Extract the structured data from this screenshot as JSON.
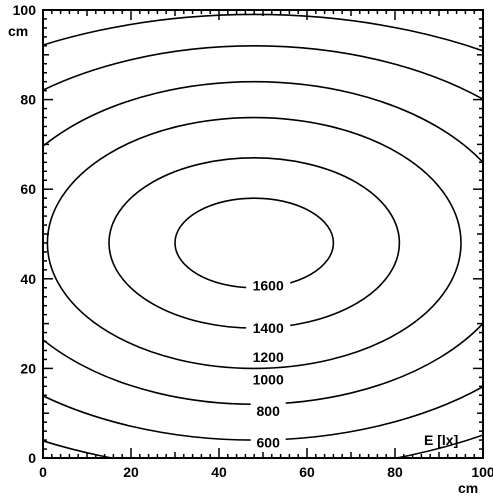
{
  "chart_data": {
    "type": "contour",
    "title": "",
    "xlabel": "cm",
    "ylabel": "cm",
    "quantity_label": "E [lx]",
    "xlim": [
      0,
      100
    ],
    "ylim": [
      0,
      100
    ],
    "x_ticks": [
      0,
      20,
      40,
      60,
      80,
      100
    ],
    "y_ticks": [
      0,
      20,
      40,
      60,
      80,
      100
    ],
    "grid": false,
    "center": [
      48,
      48
    ],
    "levels": [
      {
        "value": "1600",
        "rx": 18,
        "ry": 10,
        "label_y": 38.5
      },
      {
        "value": "1400",
        "rx": 33,
        "ry": 19,
        "label_y": 29
      },
      {
        "value": "1200",
        "rx": 47,
        "ry": 28,
        "label_y": 22.5
      },
      {
        "value": "1000",
        "rx": 60,
        "ry": 36,
        "label_y": 17.5
      },
      {
        "value": "800",
        "rx": 76,
        "ry": 44,
        "label_y": 10.5
      },
      {
        "value": "600",
        "rx": 96,
        "ry": 51,
        "label_y": 3.5
      }
    ]
  }
}
